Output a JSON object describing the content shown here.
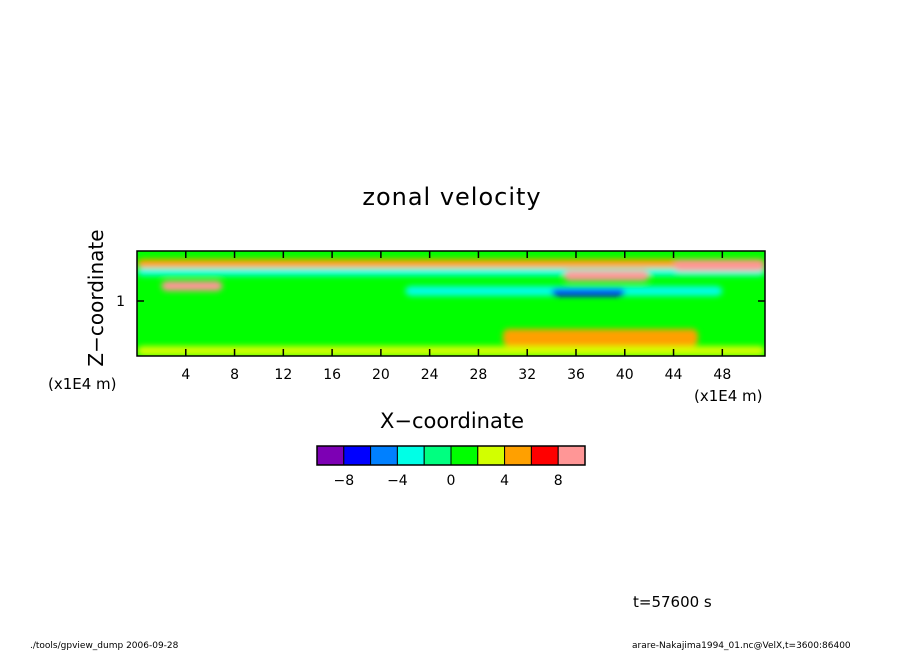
{
  "chart_data": {
    "type": "heatmap",
    "title": "zonal velocity",
    "xlabel": "X−coordinate",
    "ylabel": "Z−coordinate",
    "x_unit": "(x1E4 m)",
    "y_unit": "(x1E4 m)",
    "xlim": [
      0,
      51.5
    ],
    "ylim": [
      0.45,
      1.5
    ],
    "x_ticks": [
      "4",
      "8",
      "12",
      "16",
      "20",
      "24",
      "28",
      "32",
      "36",
      "40",
      "44",
      "48"
    ],
    "x_tick_values": [
      4,
      8,
      12,
      16,
      20,
      24,
      28,
      32,
      36,
      40,
      44,
      48
    ],
    "y_ticks": [
      "1"
    ],
    "y_tick_values": [
      1
    ],
    "colorbar": {
      "colors": [
        "#7d00b4",
        "#0000ff",
        "#0080ff",
        "#00ffe6",
        "#00ff80",
        "#00ff00",
        "#d2ff00",
        "#ffa000",
        "#ff0000",
        "#ff9696"
      ],
      "tick_labels": [
        "−8",
        "−4",
        "0",
        "4",
        "8"
      ],
      "tick_values": [
        -8,
        -4,
        0,
        4,
        8
      ],
      "range": [
        -10,
        10
      ],
      "step": 2
    },
    "features": [
      {
        "x": [
          0,
          51.5
        ],
        "z": [
          1.33,
          1.42
        ],
        "value": 5
      },
      {
        "x": [
          0,
          51.5
        ],
        "z": [
          1.25,
          1.33
        ],
        "value": -4
      },
      {
        "x": [
          22,
          48
        ],
        "z": [
          1.05,
          1.15
        ],
        "value": -4
      },
      {
        "x": [
          34,
          40
        ],
        "z": [
          1.05,
          1.12
        ],
        "value": -8
      },
      {
        "x": [
          2,
          7
        ],
        "z": [
          1.1,
          1.2
        ],
        "value": 8
      },
      {
        "x": [
          35,
          42
        ],
        "z": [
          1.2,
          1.3
        ],
        "value": 8
      },
      {
        "x": [
          44,
          51.5
        ],
        "z": [
          1.3,
          1.4
        ],
        "value": 9
      },
      {
        "x": [
          30,
          46
        ],
        "z": [
          0.55,
          0.72
        ],
        "value": 5
      },
      {
        "x": [
          0,
          51.5
        ],
        "z": [
          0.45,
          0.55
        ],
        "value": 3
      }
    ]
  },
  "annotation": {
    "time": "t=57600 s",
    "footer_left": "./tools/gpview_dump   2006-09-28",
    "footer_right": "arare-Nakajima1994_01.nc@VelX,t=3600:86400"
  }
}
